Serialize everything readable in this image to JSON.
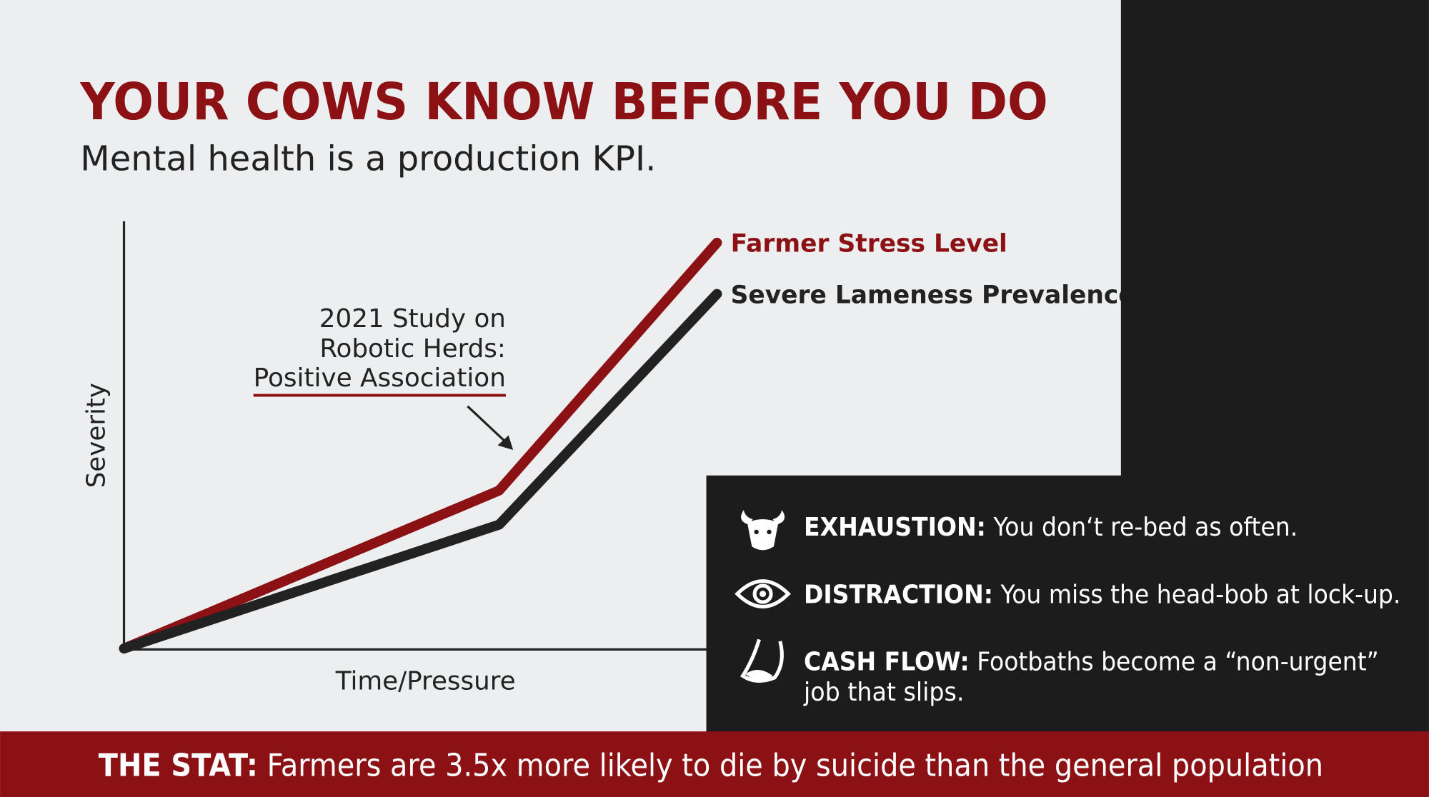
{
  "chart_data": {
    "type": "line",
    "title": "YOUR COWS KNOW BEFORE YOU DO",
    "subtitle": "Mental health is a production KPI.",
    "x_label": "Time/Pressure",
    "y_label": "Severity",
    "annotation": [
      "2021 Study on",
      "Robotic Herds:",
      "Positive Association"
    ],
    "x": [
      0,
      62,
      98
    ],
    "xlim": [
      0,
      100
    ],
    "ylim": [
      0,
      100
    ],
    "series": [
      {
        "name": "Farmer Stress Level",
        "color": "#8c1115",
        "values": [
          0,
          37,
          95
        ]
      },
      {
        "name": "Severe Lameness Prevalence",
        "color": "#222222",
        "values": [
          0,
          29,
          83
        ]
      }
    ]
  },
  "panel": {
    "items": [
      {
        "label": "EXHAUSTION:",
        "lines": [
          "You don‘t re-bed as often."
        ]
      },
      {
        "label": "DISTRACTION:",
        "lines": [
          "You miss the head-bob at lock-up."
        ]
      },
      {
        "label": "CASH FLOW:",
        "lines": [
          "Footbaths become a “non-urgent”",
          "job that slips."
        ]
      }
    ]
  },
  "banner": {
    "label": "THE STAT:",
    "text": "Farmers are 3.5x more likely to die by suicide than the general population"
  }
}
